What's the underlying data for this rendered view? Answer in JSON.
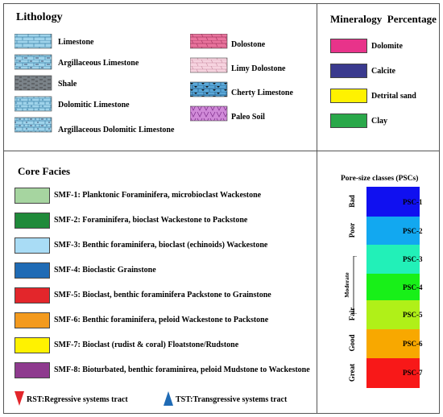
{
  "lithology": {
    "title": "Lithology",
    "left": [
      {
        "label": "Limestone",
        "pattern": "limestone"
      },
      {
        "label": "Argillaceous Limestone",
        "pattern": "arg-limestone"
      },
      {
        "label": "Shale",
        "pattern": "shale"
      },
      {
        "label": "Dolomitic Limestone",
        "pattern": "dol-limestone"
      },
      {
        "label": "Argillaceous Dolomitic Limestone",
        "pattern": "arg-dol-limestone"
      }
    ],
    "right": [
      {
        "label": "Dolostone",
        "pattern": "dolostone"
      },
      {
        "label": "Limy Dolostone",
        "pattern": "limy-dolostone"
      },
      {
        "label": "Cherty Limestone",
        "pattern": "cherty"
      },
      {
        "label": "Paleo Soil",
        "pattern": "paleosoil"
      }
    ]
  },
  "mineralogy": {
    "title": "Mineralogy  Percentage",
    "items": [
      {
        "label": "Dolomite",
        "color": "#e8338a"
      },
      {
        "label": "Calcite",
        "color": "#3a3a8e"
      },
      {
        "label": "Detrital sand",
        "color": "#fff200"
      },
      {
        "label": "Clay",
        "color": "#2aa84a"
      }
    ]
  },
  "core_facies": {
    "title": "Core Facies",
    "items": [
      {
        "label": "SMF-1: Planktonic Foraminifera, microbioclast Wackestone",
        "color": "#a6d5a0"
      },
      {
        "label": "SMF-2: Foraminifera, bioclast Wackestone to Packstone",
        "color": "#1f8a3a"
      },
      {
        "label": "SMF-3: Benthic foraminifera, bioclast (echinoids) Wackestone",
        "color": "#a9dcf5"
      },
      {
        "label": "SMF-4: Bioclastic Grainstone",
        "color": "#1f6bb5"
      },
      {
        "label": "SMF-5: Bioclast, benthic foraminifera Packstone to Grainstone",
        "color": "#e3262b"
      },
      {
        "label": "SMF-6: Benthic foraminifera, peloid Wackestone to Packstone",
        "color": "#f39a1e"
      },
      {
        "label": "SMF-7: Bioclast (rudist & coral) Floatstone/Rudstone",
        "color": "#fff200"
      },
      {
        "label": "SMF-8: Bioturbated, benthic foraminirea, peloid Mudstone to Wackestone",
        "color": "#8e3a8e"
      }
    ]
  },
  "systems_tract": {
    "rst": {
      "label": "RST:Regressive systems tract",
      "color": "#e3262b"
    },
    "tst": {
      "label": "TST:Transgressive systems tract",
      "color": "#1f6bb5"
    }
  },
  "psc": {
    "title": "Pore-size classes (PSCs)",
    "classes": [
      {
        "label": "PSC-1",
        "color": "#1010f0"
      },
      {
        "label": "PSC-2",
        "color": "#12a8f0"
      },
      {
        "label": "PSC-3",
        "color": "#22f0b8"
      },
      {
        "label": "PSC-4",
        "color": "#18f018"
      },
      {
        "label": "PSC-5",
        "color": "#b0f018"
      },
      {
        "label": "PSC-6",
        "color": "#f8a800"
      },
      {
        "label": "PSC-7",
        "color": "#f81818"
      }
    ],
    "quality": [
      "Bad",
      "Poor",
      "Moderate",
      "Fair",
      "Good",
      "Great"
    ]
  }
}
